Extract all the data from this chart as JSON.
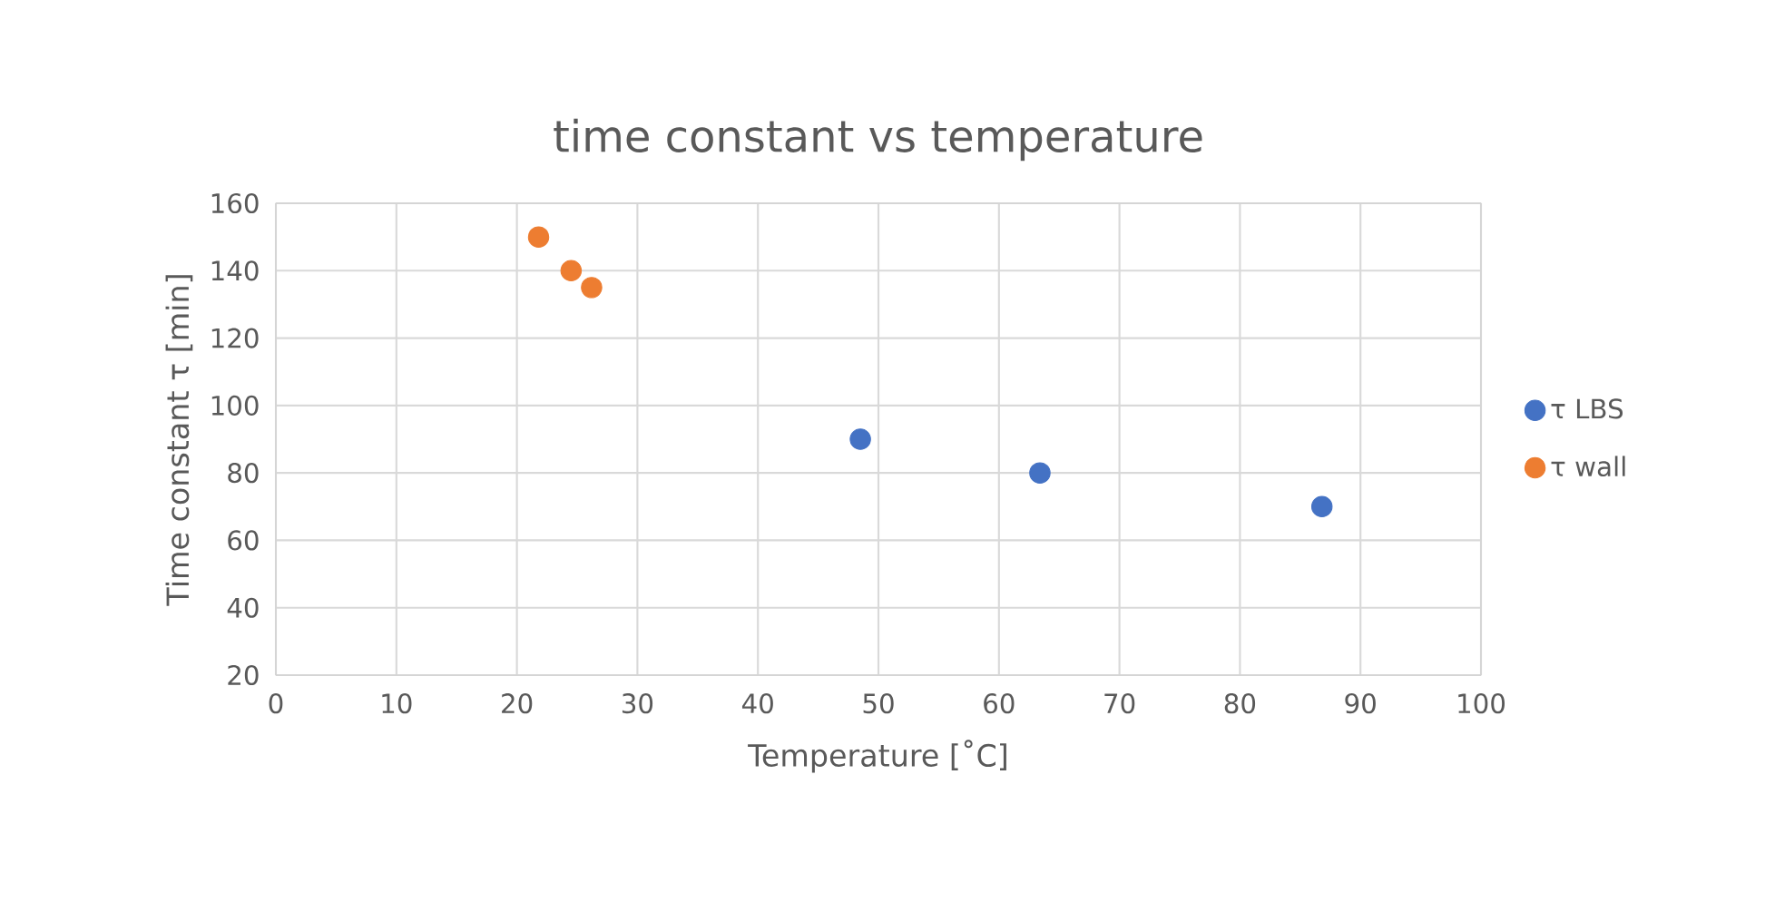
{
  "chart_data": {
    "type": "scatter",
    "title": "time constant vs temperature",
    "xlabel": "Temperature [˚C]",
    "ylabel": "Time constant τ [min]",
    "series": [
      {
        "name": "τ LBS",
        "color": "#4472c4",
        "x": [
          48.5,
          63.4,
          86.8
        ],
        "values": [
          90,
          80,
          70
        ]
      },
      {
        "name": "τ wall",
        "color": "#ed7d31",
        "x": [
          21.8,
          24.5,
          26.2
        ],
        "values": [
          150,
          140,
          135
        ]
      }
    ],
    "xlim": [
      0,
      100
    ],
    "xticks": [
      0,
      10,
      20,
      30,
      40,
      50,
      60,
      70,
      80,
      90,
      100
    ],
    "ylim": [
      20,
      160
    ],
    "yticks": [
      20,
      40,
      60,
      80,
      100,
      120,
      140,
      160
    ],
    "grid": true,
    "legend": "right"
  }
}
